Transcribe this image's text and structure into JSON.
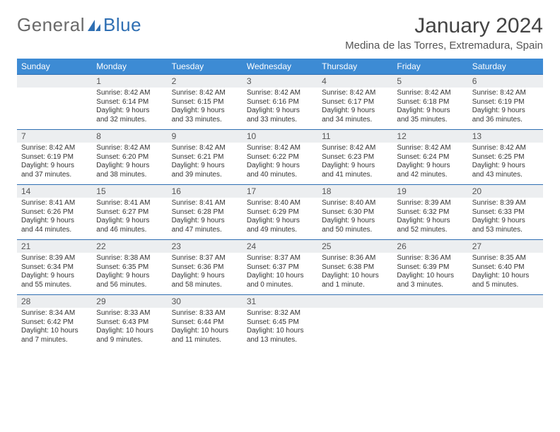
{
  "brand": {
    "part1": "General",
    "part2": "Blue"
  },
  "title": "January 2024",
  "location": "Medina de las Torres, Extremadura, Spain",
  "colors": {
    "header_bg": "#3d8bd4",
    "header_text": "#ffffff",
    "daynum_bg": "#eceef0",
    "border": "#2f6fb3",
    "logo_blue": "#2f6fb3",
    "logo_grey": "#6a6a6a"
  },
  "weekdays": [
    "Sunday",
    "Monday",
    "Tuesday",
    "Wednesday",
    "Thursday",
    "Friday",
    "Saturday"
  ],
  "weeks": [
    [
      {
        "empty": true
      },
      {
        "num": "1",
        "sunrise": "8:42 AM",
        "sunset": "6:14 PM",
        "daylight": "9 hours and 32 minutes."
      },
      {
        "num": "2",
        "sunrise": "8:42 AM",
        "sunset": "6:15 PM",
        "daylight": "9 hours and 33 minutes."
      },
      {
        "num": "3",
        "sunrise": "8:42 AM",
        "sunset": "6:16 PM",
        "daylight": "9 hours and 33 minutes."
      },
      {
        "num": "4",
        "sunrise": "8:42 AM",
        "sunset": "6:17 PM",
        "daylight": "9 hours and 34 minutes."
      },
      {
        "num": "5",
        "sunrise": "8:42 AM",
        "sunset": "6:18 PM",
        "daylight": "9 hours and 35 minutes."
      },
      {
        "num": "6",
        "sunrise": "8:42 AM",
        "sunset": "6:19 PM",
        "daylight": "9 hours and 36 minutes."
      }
    ],
    [
      {
        "num": "7",
        "sunrise": "8:42 AM",
        "sunset": "6:19 PM",
        "daylight": "9 hours and 37 minutes."
      },
      {
        "num": "8",
        "sunrise": "8:42 AM",
        "sunset": "6:20 PM",
        "daylight": "9 hours and 38 minutes."
      },
      {
        "num": "9",
        "sunrise": "8:42 AM",
        "sunset": "6:21 PM",
        "daylight": "9 hours and 39 minutes."
      },
      {
        "num": "10",
        "sunrise": "8:42 AM",
        "sunset": "6:22 PM",
        "daylight": "9 hours and 40 minutes."
      },
      {
        "num": "11",
        "sunrise": "8:42 AM",
        "sunset": "6:23 PM",
        "daylight": "9 hours and 41 minutes."
      },
      {
        "num": "12",
        "sunrise": "8:42 AM",
        "sunset": "6:24 PM",
        "daylight": "9 hours and 42 minutes."
      },
      {
        "num": "13",
        "sunrise": "8:42 AM",
        "sunset": "6:25 PM",
        "daylight": "9 hours and 43 minutes."
      }
    ],
    [
      {
        "num": "14",
        "sunrise": "8:41 AM",
        "sunset": "6:26 PM",
        "daylight": "9 hours and 44 minutes."
      },
      {
        "num": "15",
        "sunrise": "8:41 AM",
        "sunset": "6:27 PM",
        "daylight": "9 hours and 46 minutes."
      },
      {
        "num": "16",
        "sunrise": "8:41 AM",
        "sunset": "6:28 PM",
        "daylight": "9 hours and 47 minutes."
      },
      {
        "num": "17",
        "sunrise": "8:40 AM",
        "sunset": "6:29 PM",
        "daylight": "9 hours and 49 minutes."
      },
      {
        "num": "18",
        "sunrise": "8:40 AM",
        "sunset": "6:30 PM",
        "daylight": "9 hours and 50 minutes."
      },
      {
        "num": "19",
        "sunrise": "8:39 AM",
        "sunset": "6:32 PM",
        "daylight": "9 hours and 52 minutes."
      },
      {
        "num": "20",
        "sunrise": "8:39 AM",
        "sunset": "6:33 PM",
        "daylight": "9 hours and 53 minutes."
      }
    ],
    [
      {
        "num": "21",
        "sunrise": "8:39 AM",
        "sunset": "6:34 PM",
        "daylight": "9 hours and 55 minutes."
      },
      {
        "num": "22",
        "sunrise": "8:38 AM",
        "sunset": "6:35 PM",
        "daylight": "9 hours and 56 minutes."
      },
      {
        "num": "23",
        "sunrise": "8:37 AM",
        "sunset": "6:36 PM",
        "daylight": "9 hours and 58 minutes."
      },
      {
        "num": "24",
        "sunrise": "8:37 AM",
        "sunset": "6:37 PM",
        "daylight": "10 hours and 0 minutes."
      },
      {
        "num": "25",
        "sunrise": "8:36 AM",
        "sunset": "6:38 PM",
        "daylight": "10 hours and 1 minute."
      },
      {
        "num": "26",
        "sunrise": "8:36 AM",
        "sunset": "6:39 PM",
        "daylight": "10 hours and 3 minutes."
      },
      {
        "num": "27",
        "sunrise": "8:35 AM",
        "sunset": "6:40 PM",
        "daylight": "10 hours and 5 minutes."
      }
    ],
    [
      {
        "num": "28",
        "sunrise": "8:34 AM",
        "sunset": "6:42 PM",
        "daylight": "10 hours and 7 minutes."
      },
      {
        "num": "29",
        "sunrise": "8:33 AM",
        "sunset": "6:43 PM",
        "daylight": "10 hours and 9 minutes."
      },
      {
        "num": "30",
        "sunrise": "8:33 AM",
        "sunset": "6:44 PM",
        "daylight": "10 hours and 11 minutes."
      },
      {
        "num": "31",
        "sunrise": "8:32 AM",
        "sunset": "6:45 PM",
        "daylight": "10 hours and 13 minutes."
      },
      {
        "empty": true
      },
      {
        "empty": true
      },
      {
        "empty": true
      }
    ]
  ],
  "labels": {
    "sunrise": "Sunrise:",
    "sunset": "Sunset:",
    "daylight": "Daylight:"
  }
}
